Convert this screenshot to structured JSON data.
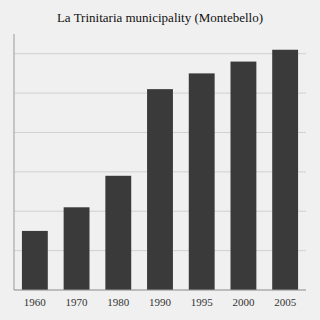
{
  "chart_data": {
    "type": "bar",
    "title": "La Trinitaria municipality (Montebello)",
    "categories": [
      "1960",
      "1970",
      "1980",
      "1990",
      "1995",
      "2000",
      "2005"
    ],
    "values": [
      30000,
      42000,
      58000,
      102000,
      110000,
      116000,
      122000
    ],
    "color": "#3a3a3a",
    "ylim": [
      0,
      130000
    ],
    "yticks": [
      0,
      20000,
      40000,
      60000,
      80000,
      100000,
      120000
    ],
    "grid": true,
    "tick_labels": "x"
  }
}
